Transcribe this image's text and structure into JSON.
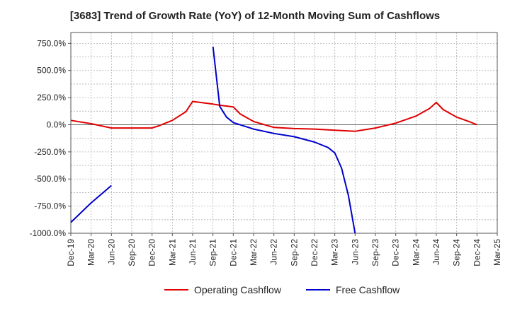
{
  "chart_data": {
    "type": "line",
    "title": "[3683]  Trend of Growth Rate (YoY) of 12-Month Moving Sum of Cashflows",
    "xlabel": "",
    "ylabel": "",
    "x_ticks": [
      "Dec-19",
      "Mar-20",
      "Jun-20",
      "Sep-20",
      "Dec-20",
      "Mar-21",
      "Jun-21",
      "Sep-21",
      "Dec-21",
      "Mar-22",
      "Jun-22",
      "Sep-22",
      "Dec-22",
      "Mar-23",
      "Jun-23",
      "Sep-23",
      "Dec-23",
      "Mar-24",
      "Jun-24",
      "Sep-24",
      "Dec-24",
      "Mar-25"
    ],
    "y_ticks": [
      "750.0%",
      "500.0%",
      "250.0%",
      "0.0%",
      "-250.0%",
      "-500.0%",
      "-750.0%",
      "-1000.0%"
    ],
    "ylim": [
      -1000,
      850
    ],
    "grid": true,
    "legend_position": "bottom",
    "series": [
      {
        "name": "Operating Cashflow",
        "color": "#e00000",
        "points": [
          [
            "2019-12",
            40
          ],
          [
            "2020-03",
            10
          ],
          [
            "2020-06",
            -30
          ],
          [
            "2020-09",
            -30
          ],
          [
            "2020-12",
            -30
          ],
          [
            "2021-01",
            -10
          ],
          [
            "2021-03",
            40
          ],
          [
            "2021-05",
            120
          ],
          [
            "2021-06",
            215
          ],
          [
            "2021-09",
            190
          ],
          [
            "2021-10",
            180
          ],
          [
            "2021-12",
            165
          ],
          [
            "2022-01",
            100
          ],
          [
            "2022-03",
            30
          ],
          [
            "2022-06",
            -25
          ],
          [
            "2022-09",
            -35
          ],
          [
            "2022-12",
            -40
          ],
          [
            "2023-03",
            -50
          ],
          [
            "2023-06",
            -60
          ],
          [
            "2023-09",
            -30
          ],
          [
            "2023-12",
            15
          ],
          [
            "2024-03",
            80
          ],
          [
            "2024-05",
            150
          ],
          [
            "2024-06",
            205
          ],
          [
            "2024-07",
            140
          ],
          [
            "2024-09",
            70
          ],
          [
            "2024-11",
            25
          ],
          [
            "2024-12",
            0
          ]
        ]
      },
      {
        "name": "Free Cashflow",
        "color": "#0000cc",
        "points": [
          [
            "2019-12",
            -900
          ],
          [
            "2020-03",
            -720
          ],
          [
            "2020-06",
            -560
          ],
          null,
          [
            "2021-09",
            720
          ],
          [
            "2021-10",
            170
          ],
          [
            "2021-11",
            70
          ],
          [
            "2021-12",
            20
          ],
          [
            "2022-03",
            -40
          ],
          [
            "2022-06",
            -80
          ],
          [
            "2022-09",
            -110
          ],
          [
            "2022-12",
            -160
          ],
          [
            "2023-02",
            -210
          ],
          [
            "2023-03",
            -260
          ],
          [
            "2023-04",
            -400
          ],
          [
            "2023-05",
            -650
          ],
          [
            "2023-06",
            -1000
          ]
        ]
      }
    ]
  }
}
